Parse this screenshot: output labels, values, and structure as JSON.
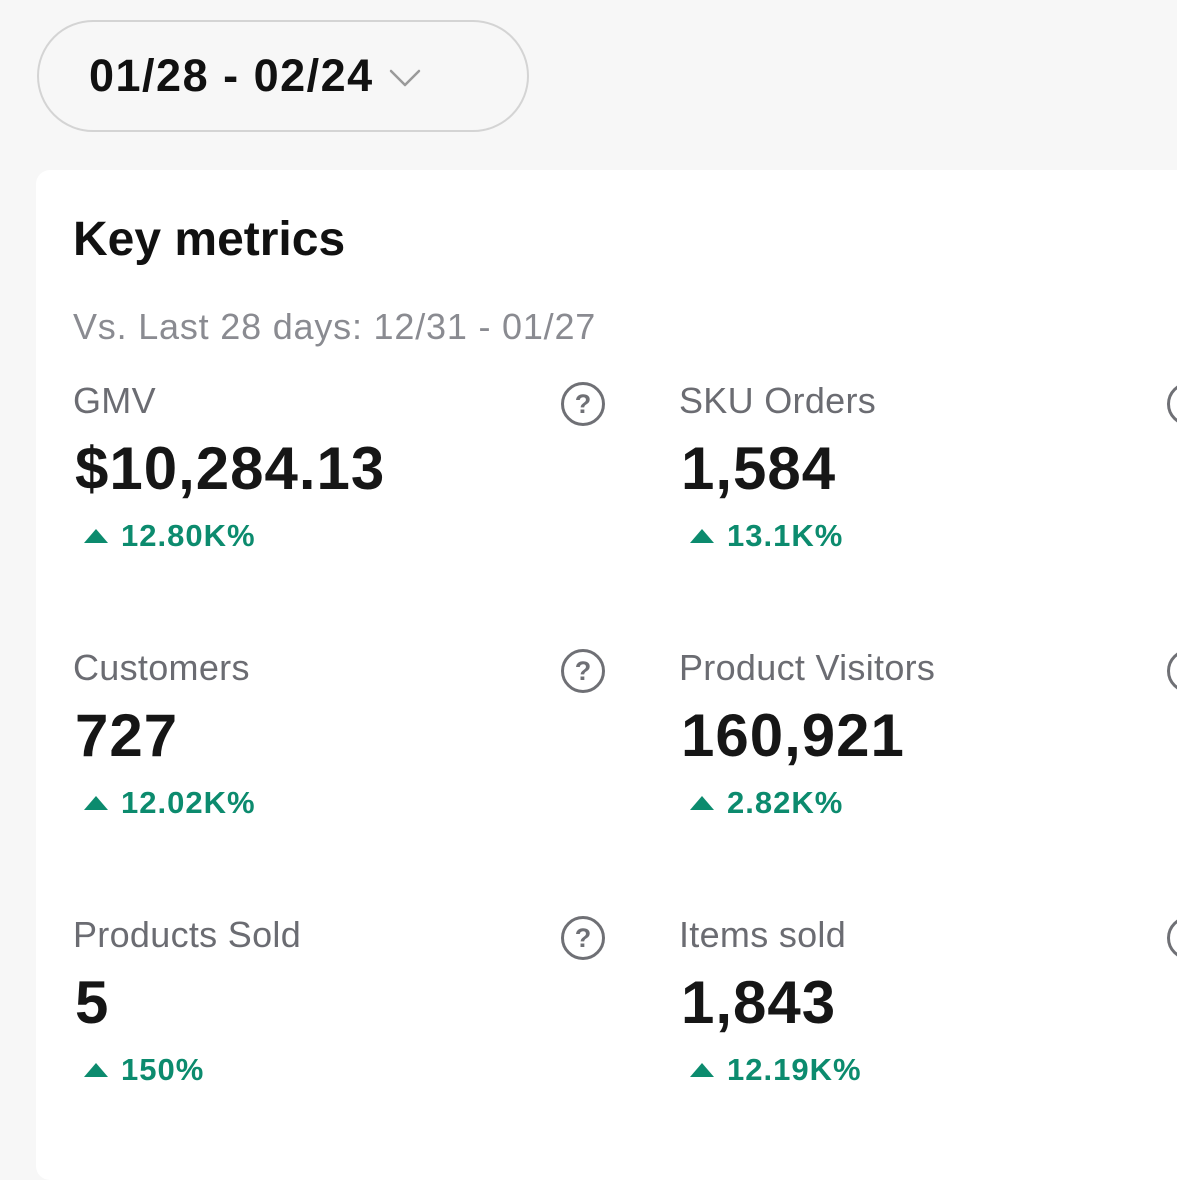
{
  "date_range": {
    "label": "01/28 - 02/24",
    "icon": "chevron-down-icon"
  },
  "key_metrics": {
    "title": "Key metrics",
    "comparison": "Vs. Last 28 days: 12/31 - 01/27",
    "help_glyph": "?",
    "accent_color": "#0c8b6e",
    "items": [
      {
        "label": "GMV",
        "value": "$10,284.13",
        "change": "12.80K%",
        "trend": "up"
      },
      {
        "label": "SKU Orders",
        "value": "1,584",
        "change": "13.1K%",
        "trend": "up"
      },
      {
        "label": "Customers",
        "value": "727",
        "change": "12.02K%",
        "trend": "up"
      },
      {
        "label": "Product Visitors",
        "value": "160,921",
        "change": "2.82K%",
        "trend": "up"
      },
      {
        "label": "Products Sold",
        "value": "5",
        "change": "150%",
        "trend": "up"
      },
      {
        "label": "Items sold",
        "value": "1,843",
        "change": "12.19K%",
        "trend": "up"
      }
    ]
  }
}
